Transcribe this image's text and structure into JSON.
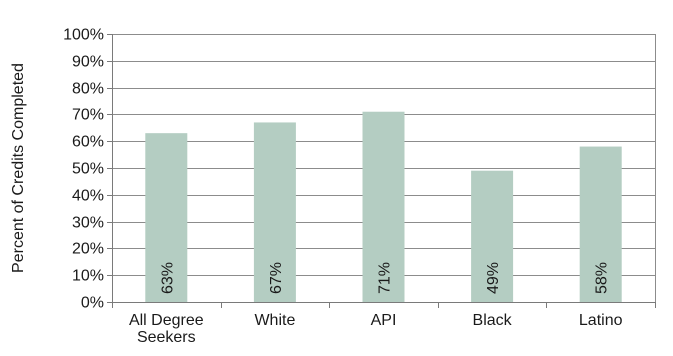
{
  "chart_data": {
    "type": "bar",
    "title": "",
    "xlabel": "",
    "ylabel": "Percent of Credits Completed",
    "categories": [
      [
        "All Degree",
        "Seekers"
      ],
      [
        "White"
      ],
      [
        "API"
      ],
      [
        "Black"
      ],
      [
        "Latino"
      ]
    ],
    "values": [
      63,
      67,
      71,
      49,
      58
    ],
    "data_labels": [
      "63%",
      "67%",
      "71%",
      "49%",
      "58%"
    ],
    "y_ticks": [
      "0%",
      "10%",
      "20%",
      "30%",
      "40%",
      "50%",
      "60%",
      "70%",
      "80%",
      "90%",
      "100%"
    ],
    "ylim": [
      0,
      100
    ],
    "grid": true,
    "legend": "none",
    "colors": {
      "bar": "#b4cdc2",
      "grid": "#8c8c8c",
      "axis": "#7a7a7a",
      "text": "#1a1a1a"
    }
  }
}
